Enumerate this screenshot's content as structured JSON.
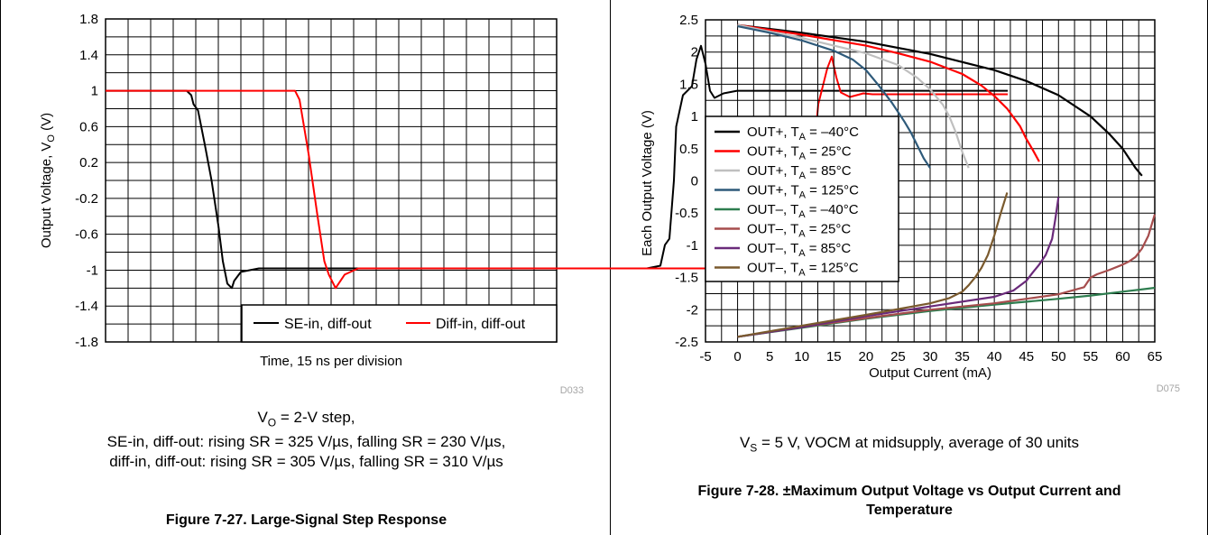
{
  "chart_data": [
    {
      "type": "line",
      "id": "step",
      "xlabel": "Time, 15 ns per division",
      "ylabel": "Output Voltage, V",
      "ylabel_sub": "O",
      "ylabel_unit": " (V)",
      "ylim": [
        -1.8,
        1.8
      ],
      "yticks": [
        "1.8",
        "1.4",
        "1",
        "0.6",
        "0.2",
        "-0.2",
        "-0.6",
        "-1",
        "-1.4",
        "-1.8"
      ],
      "x_divisions": 10,
      "grid": true,
      "legend_placement": "bottom-right",
      "series": [
        {
          "name": "SE-in, diff-out",
          "color": "#000000",
          "x": [
            0,
            1.8,
            1.9,
            1.95,
            2.05,
            2.2,
            2.35,
            2.5,
            2.6,
            2.7,
            2.8,
            2.85,
            3.0,
            3.4,
            4.0,
            5.0,
            6.0,
            7.0,
            8.0,
            9.0,
            10.0,
            11.0,
            12.0,
            12.3,
            12.4,
            12.5,
            12.6,
            12.65,
            12.8,
            13.0,
            13.1,
            13.2,
            13.3,
            13.4,
            13.5,
            13.7,
            14.0,
            15.0,
            16.0,
            17.0,
            18.0,
            19.0,
            20.0
          ],
          "y": [
            1.0,
            1.0,
            0.95,
            0.85,
            0.78,
            0.4,
            0.0,
            -0.5,
            -0.9,
            -1.15,
            -1.2,
            -1.12,
            -1.02,
            -0.98,
            -0.98,
            -0.98,
            -0.98,
            -0.98,
            -0.98,
            -0.98,
            -0.98,
            -0.98,
            -0.98,
            -0.95,
            -0.72,
            -0.65,
            0.0,
            0.6,
            0.95,
            1.05,
            1.35,
            1.5,
            1.3,
            1.0,
            0.92,
            0.97,
            1.0,
            1.0,
            1.0,
            1.0,
            1.0,
            1.0,
            1.0
          ]
        },
        {
          "name": "Diff-in, diff-out",
          "color": "#ff0000",
          "x": [
            0,
            4.2,
            4.3,
            4.5,
            4.7,
            4.85,
            4.95,
            5.05,
            5.1,
            5.3,
            5.6,
            6,
            7,
            8,
            9,
            10,
            11,
            12,
            13,
            14,
            15,
            15.5,
            15.6,
            15.7,
            15.8,
            15.9,
            16.0,
            16.1,
            16.2,
            16.3,
            16.5,
            16.8,
            17,
            18,
            19,
            20
          ],
          "y": [
            1.0,
            1.0,
            0.9,
            0.3,
            -0.4,
            -0.9,
            -1.05,
            -1.15,
            -1.2,
            -1.05,
            -0.98,
            -0.98,
            -0.98,
            -0.98,
            -0.98,
            -0.98,
            -0.98,
            -0.98,
            -0.98,
            -0.98,
            -0.98,
            -0.98,
            -0.5,
            0.3,
            0.85,
            1.05,
            1.25,
            1.38,
            1.15,
            0.98,
            0.93,
            0.97,
            0.96,
            0.96,
            0.96,
            0.96
          ]
        }
      ]
    },
    {
      "type": "line",
      "id": "vout",
      "xlabel": "Output Current (mA)",
      "ylabel": "Each Output Voltage (V)",
      "xlim": [
        -5,
        65
      ],
      "ylim": [
        -2.5,
        2.5
      ],
      "xticks": [
        "-5",
        "0",
        "5",
        "10",
        "15",
        "20",
        "25",
        "30",
        "35",
        "40",
        "45",
        "50",
        "55",
        "60",
        "65"
      ],
      "yticks": [
        "2.5",
        "2",
        "1.5",
        "1",
        "0.5",
        "0",
        "-0.5",
        "-1",
        "-1.5",
        "-2",
        "-2.5"
      ],
      "grid": true,
      "legend_placement": "left",
      "series": [
        {
          "name": "OUT+, T",
          "sub": "A",
          "suffix": " = –40°C",
          "color": "#000000",
          "x": [
            0,
            10,
            20,
            30,
            40,
            45,
            50,
            55,
            58,
            60,
            61,
            62,
            63
          ],
          "y": [
            2.42,
            2.3,
            2.16,
            1.97,
            1.72,
            1.55,
            1.33,
            1.0,
            0.72,
            0.5,
            0.35,
            0.2,
            0.08
          ]
        },
        {
          "name": "OUT+, T",
          "sub": "A",
          "suffix": " = 25°C",
          "color": "#ff0000",
          "x": [
            0,
            10,
            20,
            25,
            30,
            35,
            38,
            40,
            42,
            44,
            45,
            46,
            47
          ],
          "y": [
            2.42,
            2.27,
            2.1,
            1.98,
            1.85,
            1.66,
            1.48,
            1.32,
            1.12,
            0.85,
            0.65,
            0.48,
            0.3
          ]
        },
        {
          "name": "OUT+, T",
          "sub": "A",
          "suffix": " = 85°C",
          "color": "#bfbfbf",
          "x": [
            0,
            5,
            10,
            15,
            20,
            25,
            28,
            30,
            32,
            33,
            34,
            35,
            36
          ],
          "y": [
            2.42,
            2.32,
            2.22,
            2.1,
            1.98,
            1.8,
            1.6,
            1.42,
            1.18,
            1.0,
            0.75,
            0.45,
            0.2
          ]
        },
        {
          "name": "OUT+, T",
          "sub": "A",
          "suffix": " = 125°C",
          "color": "#2e5a7a",
          "x": [
            0,
            5,
            10,
            15,
            18,
            20,
            22,
            24,
            26,
            27,
            28,
            29,
            30
          ],
          "y": [
            2.4,
            2.3,
            2.18,
            2.02,
            1.88,
            1.72,
            1.48,
            1.22,
            0.92,
            0.75,
            0.55,
            0.35,
            0.2
          ]
        },
        {
          "name": "OUT–, T",
          "sub": "A",
          "suffix": " = –40°C",
          "color": "#2e7d4f",
          "x": [
            0,
            10,
            20,
            30,
            40,
            50,
            55,
            60,
            65
          ],
          "y": [
            -2.42,
            -2.28,
            -2.14,
            -2.02,
            -1.92,
            -1.83,
            -1.78,
            -1.72,
            -1.66
          ]
        },
        {
          "name": "OUT–, T",
          "sub": "A",
          "suffix": " = 25°C",
          "color": "#a64d4d",
          "x": [
            0,
            10,
            20,
            30,
            40,
            50,
            54,
            55,
            56,
            58,
            60,
            61,
            62,
            63,
            64,
            65
          ],
          "y": [
            -2.42,
            -2.27,
            -2.13,
            -2.0,
            -1.9,
            -1.76,
            -1.65,
            -1.5,
            -1.45,
            -1.38,
            -1.3,
            -1.25,
            -1.18,
            -1.05,
            -0.85,
            -0.52
          ]
        },
        {
          "name": "OUT–, T",
          "sub": "A",
          "suffix": " = 85°C",
          "color": "#6a2a7a",
          "x": [
            0,
            10,
            20,
            30,
            40,
            43,
            45,
            46,
            47,
            48,
            49,
            49.5,
            50
          ],
          "y": [
            -2.42,
            -2.27,
            -2.1,
            -1.95,
            -1.8,
            -1.7,
            -1.55,
            -1.42,
            -1.3,
            -1.15,
            -0.9,
            -0.6,
            -0.25
          ]
        },
        {
          "name": "OUT–, T",
          "sub": "A",
          "suffix": " = 125°C",
          "color": "#7a5a2e",
          "x": [
            0,
            10,
            20,
            30,
            33,
            35,
            36,
            37,
            38,
            39,
            40,
            41,
            42
          ],
          "y": [
            -2.42,
            -2.25,
            -2.08,
            -1.9,
            -1.82,
            -1.72,
            -1.62,
            -1.5,
            -1.35,
            -1.15,
            -0.85,
            -0.5,
            -0.18
          ]
        }
      ]
    }
  ],
  "left": {
    "code": "D033",
    "cap1_pre": "V",
    "cap1_sub": "O",
    "cap1_post": " = 2-V step,",
    "cap2": "SE-in, diff-out: rising SR = 325 V/µs, falling SR = 230 V/µs,",
    "cap3": "diff-in, diff-out: rising SR = 305 V/µs, falling SR = 310 V/µs",
    "figure_title": "Figure 7-27. Large-Signal Step Response"
  },
  "right": {
    "code": "D075",
    "cap_pre": "V",
    "cap_sub": "S",
    "cap_post": " = 5 V, VOCM at midsupply, average of 30 units",
    "figure_title_l1": "Figure 7-28. ±Maximum Output Voltage vs Output Current and",
    "figure_title_l2": "Temperature"
  }
}
